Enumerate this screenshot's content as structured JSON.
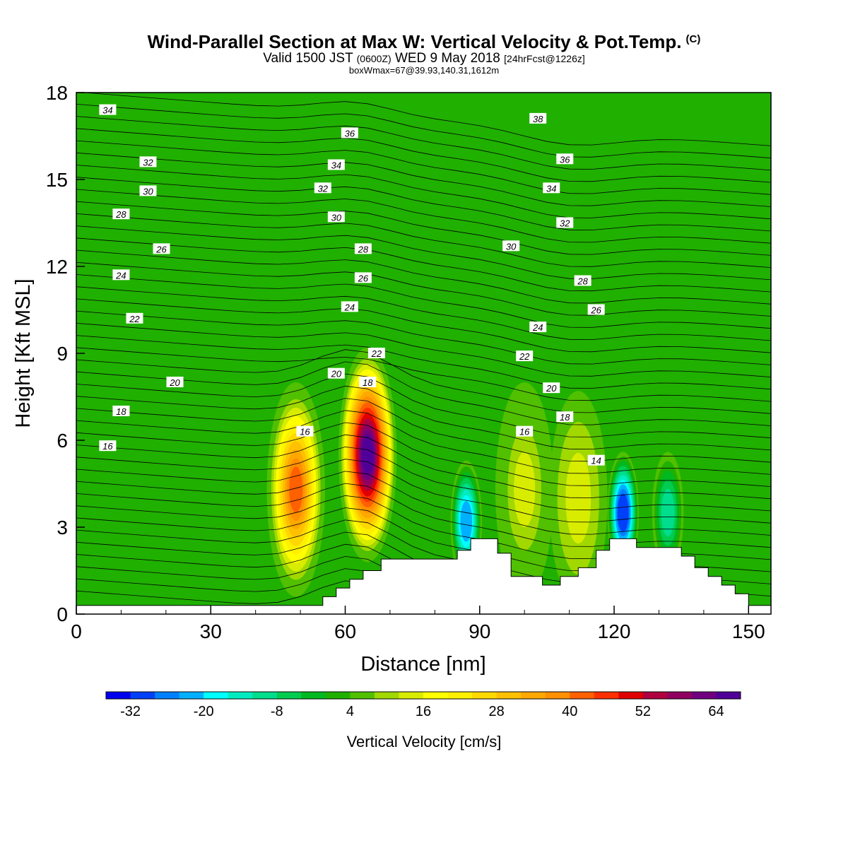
{
  "title": "Wind-Parallel Section at Max W: Vertical Velocity & Pot.Temp.",
  "copyright_mark": "(C)",
  "subtitle": {
    "valid_prefix": "Valid 1500 JST",
    "utc": "(0600Z)",
    "date": "WED 9 May 2018",
    "forecast": "[24hrFcst@1226z]"
  },
  "info_line": "boxWmax=67@39.93,140.31,1612m",
  "chart_data": {
    "type": "heatmap",
    "xlabel": "Distance [nm]",
    "ylabel": "Height [Kft MSL]",
    "xlim": [
      0,
      155
    ],
    "ylim": [
      0,
      18
    ],
    "xticks": [
      "0",
      "30",
      "60",
      "90",
      "120",
      "150"
    ],
    "yticks": [
      "0",
      "3",
      "6",
      "9",
      "12",
      "15",
      "18"
    ],
    "colorbar": {
      "label": "Vertical Velocity [cm/s]",
      "tick_labels": [
        "-32",
        "-20",
        "-8",
        "4",
        "16",
        "28",
        "40",
        "52",
        "64"
      ],
      "levels_start": -36,
      "level_step": 4,
      "colors": [
        "#0000f0",
        "#0040f8",
        "#0080ff",
        "#00b0ff",
        "#00ffff",
        "#00ecc0",
        "#00dd8c",
        "#00cc50",
        "#00b820",
        "#20b000",
        "#50c000",
        "#a0d800",
        "#d8ec00",
        "#ffff00",
        "#fff000",
        "#ffd800",
        "#ffc000",
        "#ffa800",
        "#ff9000",
        "#ff6000",
        "#ff3000",
        "#e00000",
        "#b00040",
        "#900060",
        "#700080",
        "#500098"
      ]
    },
    "terrain_kft": {
      "x": [
        0,
        55,
        55,
        58,
        58,
        61,
        61,
        64,
        64,
        68,
        68,
        85,
        85,
        88,
        88,
        94,
        94,
        97,
        97,
        101,
        101,
        104,
        104,
        108,
        108,
        112,
        112,
        116,
        116,
        119,
        119,
        125,
        125,
        128,
        128,
        135,
        135,
        138,
        138,
        141,
        141,
        144,
        144,
        147,
        147,
        150,
        150,
        153,
        153,
        155
      ],
      "h": [
        0.3,
        0.3,
        0.6,
        0.6,
        0.9,
        0.9,
        1.2,
        1.2,
        1.5,
        1.5,
        1.9,
        1.9,
        2.2,
        2.2,
        2.6,
        2.6,
        2.1,
        2.1,
        1.3,
        1.3,
        1.3,
        1.3,
        1.0,
        1.0,
        1.3,
        1.3,
        1.6,
        1.6,
        2.2,
        2.2,
        2.6,
        2.6,
        2.3,
        2.3,
        2.3,
        2.3,
        2.0,
        2.0,
        1.6,
        1.6,
        1.3,
        1.3,
        1.0,
        1.0,
        0.7,
        0.7,
        0.3,
        0.3,
        0.3,
        0.3
      ]
    },
    "updraft_cells": [
      {
        "x": 49,
        "h": 4.3,
        "w_cm_s": 42
      },
      {
        "x": 65,
        "h": 5.5,
        "w_cm_s": 67
      },
      {
        "x": 100,
        "h": 4.3,
        "w_cm_s": 15
      },
      {
        "x": 112,
        "h": 4.0,
        "w_cm_s": 12
      }
    ],
    "downdraft_cells": [
      {
        "x": 87,
        "h": 3.2,
        "w_cm_s": -22
      },
      {
        "x": 122,
        "h": 3.5,
        "w_cm_s": -30
      },
      {
        "x": 132,
        "h": 3.5,
        "w_cm_s": -12
      }
    ],
    "theta_labels": [
      {
        "value": "34",
        "x": 7,
        "h": 17.4
      },
      {
        "value": "32",
        "x": 16,
        "h": 15.6
      },
      {
        "value": "30",
        "x": 16,
        "h": 14.6
      },
      {
        "value": "28",
        "x": 10,
        "h": 13.8
      },
      {
        "value": "26",
        "x": 19,
        "h": 12.6
      },
      {
        "value": "24",
        "x": 10,
        "h": 11.7
      },
      {
        "value": "22",
        "x": 13,
        "h": 10.2
      },
      {
        "value": "20",
        "x": 22,
        "h": 8.0
      },
      {
        "value": "18",
        "x": 10,
        "h": 7.0
      },
      {
        "value": "16",
        "x": 7,
        "h": 5.8
      },
      {
        "value": "36",
        "x": 61,
        "h": 16.6
      },
      {
        "value": "34",
        "x": 58,
        "h": 15.5
      },
      {
        "value": "32",
        "x": 55,
        "h": 14.7
      },
      {
        "value": "30",
        "x": 58,
        "h": 13.7
      },
      {
        "value": "28",
        "x": 64,
        "h": 12.6
      },
      {
        "value": "26",
        "x": 64,
        "h": 11.6
      },
      {
        "value": "24",
        "x": 61,
        "h": 10.6
      },
      {
        "value": "22",
        "x": 67,
        "h": 9.0
      },
      {
        "value": "20",
        "x": 58,
        "h": 8.3
      },
      {
        "value": "18",
        "x": 65,
        "h": 8.0
      },
      {
        "value": "16",
        "x": 51,
        "h": 6.3
      },
      {
        "value": "38",
        "x": 103,
        "h": 17.1
      },
      {
        "value": "36",
        "x": 109,
        "h": 15.7
      },
      {
        "value": "34",
        "x": 106,
        "h": 14.7
      },
      {
        "value": "32",
        "x": 109,
        "h": 13.5
      },
      {
        "value": "30",
        "x": 97,
        "h": 12.7
      },
      {
        "value": "28",
        "x": 113,
        "h": 11.5
      },
      {
        "value": "26",
        "x": 116,
        "h": 10.5
      },
      {
        "value": "24",
        "x": 103,
        "h": 9.9
      },
      {
        "value": "22",
        "x": 100,
        "h": 8.9
      },
      {
        "value": "20",
        "x": 106,
        "h": 7.8
      },
      {
        "value": "18",
        "x": 109,
        "h": 6.8
      },
      {
        "value": "16",
        "x": 100,
        "h": 6.3
      },
      {
        "value": "14",
        "x": 116,
        "h": 5.3
      }
    ]
  }
}
